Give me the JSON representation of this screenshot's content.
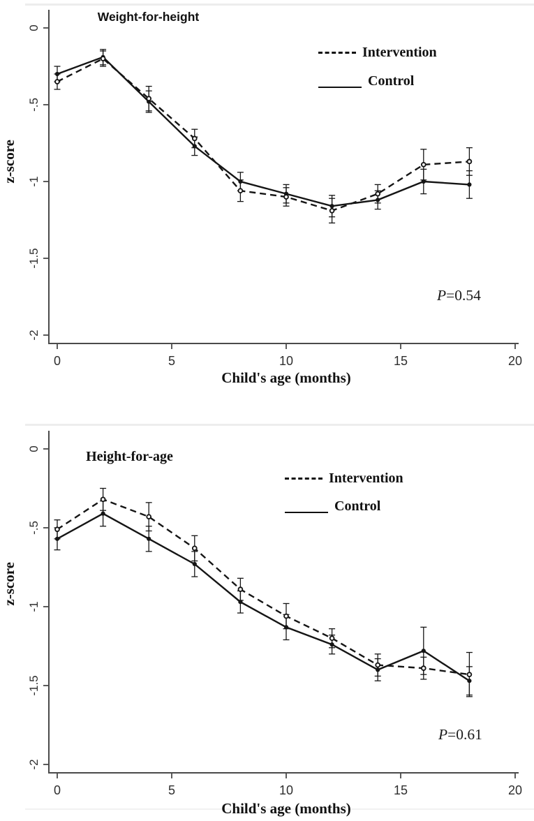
{
  "colors": {
    "line": "#151515",
    "axis": "#4a4a4a",
    "tick_label": "#2e2e2e",
    "background": "#ffffff"
  },
  "chart_data": [
    {
      "type": "line",
      "title": "Weight-for-height",
      "xlabel": "Child's age (months)",
      "ylabel": "z-score",
      "x": [
        0,
        2,
        4,
        6,
        8,
        10,
        12,
        14,
        16,
        18
      ],
      "series": [
        {
          "name": "Control",
          "line": "solid",
          "marker": "filled-circle",
          "values": [
            -0.3,
            -0.19,
            -0.48,
            -0.77,
            -1.0,
            -1.08,
            -1.16,
            -1.12,
            -1.0,
            -1.02
          ],
          "errors": [
            0.05,
            0.05,
            0.07,
            0.06,
            0.06,
            0.06,
            0.07,
            0.06,
            0.08,
            0.09
          ]
        },
        {
          "name": "Intervention",
          "line": "dashed",
          "marker": "open-circle",
          "values": [
            -0.35,
            -0.2,
            -0.46,
            -0.72,
            -1.06,
            -1.1,
            -1.19,
            -1.08,
            -0.89,
            -0.87
          ],
          "errors": [
            0.05,
            0.05,
            0.08,
            0.06,
            0.07,
            0.06,
            0.08,
            0.06,
            0.1,
            0.09
          ]
        }
      ],
      "x_tick_values": [
        0,
        5,
        10,
        15,
        20
      ],
      "x_ticks": [
        "0",
        "5",
        "10",
        "15",
        "20"
      ],
      "y_tick_values": [
        0,
        -0.5,
        -1,
        -1.5,
        -2
      ],
      "y_ticks": [
        "0",
        "-.5",
        "-1",
        "-1.5",
        "-2"
      ],
      "xlim": [
        -0.4,
        20.3
      ],
      "ylim": [
        -2.06,
        0.12
      ],
      "grid": false,
      "legend": {
        "position": "upper-right",
        "intervention_label": "Intervention",
        "control_label": "Control"
      },
      "annotation": {
        "italic": "P",
        "text": "=0.54"
      }
    },
    {
      "type": "line",
      "title": "Height-for-age",
      "xlabel": "Child's age (months)",
      "ylabel": "z-score",
      "x": [
        0,
        2,
        4,
        6,
        8,
        10,
        12,
        14,
        16,
        18
      ],
      "series": [
        {
          "name": "Control",
          "line": "solid",
          "marker": "filled-circle",
          "values": [
            -0.57,
            -0.41,
            -0.57,
            -0.73,
            -0.97,
            -1.13,
            -1.24,
            -1.4,
            -1.28,
            -1.47
          ],
          "errors": [
            0.07,
            0.08,
            0.08,
            0.08,
            0.07,
            0.08,
            0.06,
            0.07,
            0.15,
            0.09
          ]
        },
        {
          "name": "Intervention",
          "line": "dashed",
          "marker": "open-circle",
          "values": [
            -0.51,
            -0.32,
            -0.43,
            -0.63,
            -0.89,
            -1.06,
            -1.2,
            -1.37,
            -1.39,
            -1.43
          ],
          "errors": [
            0.06,
            0.07,
            0.09,
            0.08,
            0.07,
            0.08,
            0.06,
            0.07,
            0.07,
            0.14
          ]
        }
      ],
      "x_tick_values": [
        0,
        5,
        10,
        15,
        20
      ],
      "x_ticks": [
        "0",
        "5",
        "10",
        "15",
        "20"
      ],
      "y_tick_values": [
        0,
        -0.5,
        -1,
        -1.5,
        -2
      ],
      "y_ticks": [
        "0",
        "-.5",
        "-1",
        "-1.5",
        "-2"
      ],
      "xlim": [
        -0.4,
        20.3
      ],
      "ylim": [
        -2.06,
        0.12
      ],
      "grid": false,
      "legend": {
        "position": "upper-right",
        "intervention_label": "Intervention",
        "control_label": "Control"
      },
      "annotation": {
        "italic": "P",
        "text": "=0.61"
      }
    }
  ]
}
